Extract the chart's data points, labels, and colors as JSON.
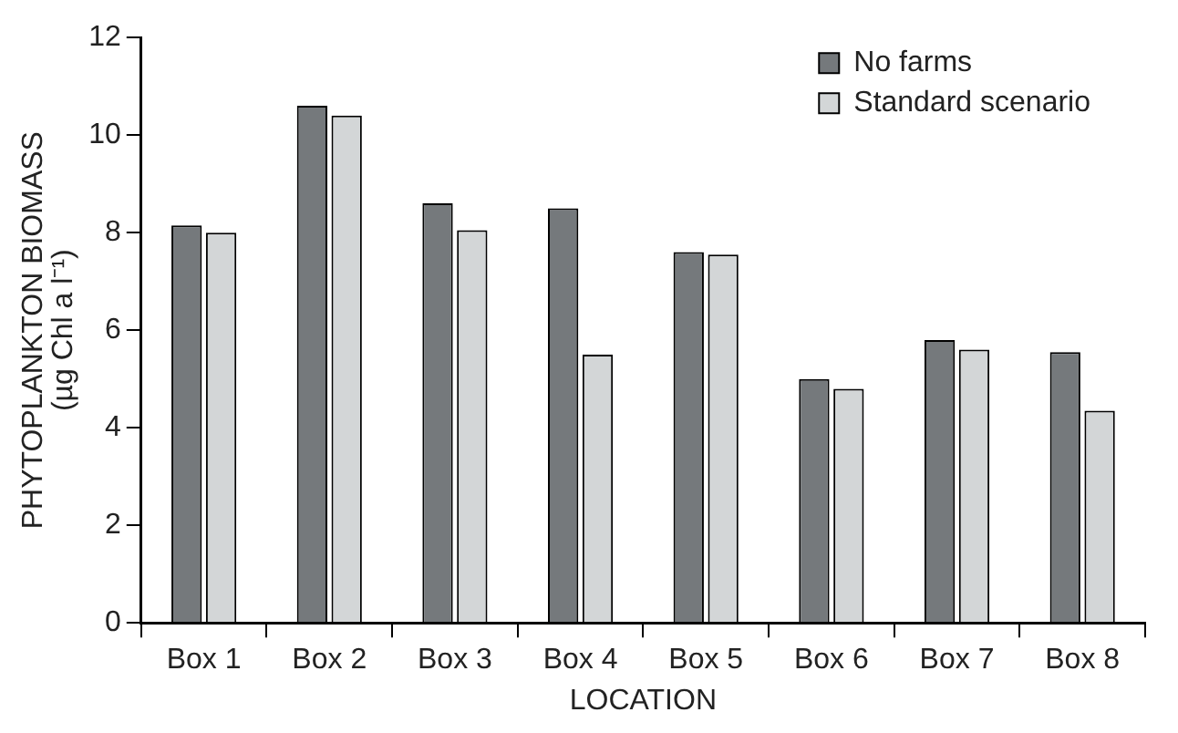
{
  "chart_data": {
    "type": "bar",
    "xlabel": "LOCATION",
    "ylabel": "PHYTOPLANKTON BIOMASS\n(µg Chl a l⁻¹)",
    "categories": [
      "Box 1",
      "Box 2",
      "Box 3",
      "Box 4",
      "Box 5",
      "Box 6",
      "Box 7",
      "Box 8"
    ],
    "series": [
      {
        "name": "No farms",
        "color": "#75797c",
        "values": [
          8.15,
          10.6,
          8.6,
          8.5,
          7.6,
          5.0,
          5.8,
          5.55
        ]
      },
      {
        "name": "Standard scenario",
        "color": "#d3d6d7",
        "values": [
          8.0,
          10.4,
          8.05,
          5.5,
          7.55,
          4.8,
          5.6,
          4.35
        ]
      }
    ],
    "ylim": [
      0,
      12
    ],
    "yticks": [
      0,
      2,
      4,
      6,
      8,
      10,
      12
    ],
    "grid": false,
    "legend": "top right"
  }
}
